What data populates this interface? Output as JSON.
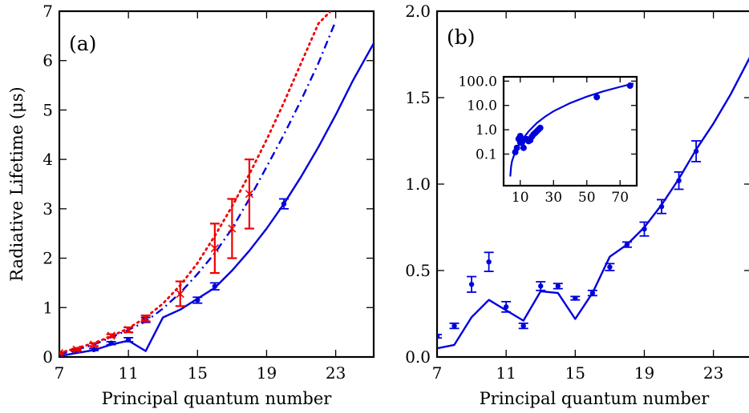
{
  "colors": {
    "blue": "#0000dd",
    "red": "#ee0000"
  },
  "chart_data": [
    {
      "type": "line",
      "panel_label": "(a)",
      "xlabel": "Principal quantum number",
      "ylabel": "Radiative Lifetime (μs)",
      "xlim": [
        7,
        25.2
      ],
      "ylim": [
        0,
        7
      ],
      "xticks": [
        7,
        11,
        15,
        19,
        23
      ],
      "yticks": [
        0,
        1,
        2,
        3,
        4,
        5,
        6,
        7
      ],
      "series": [
        {
          "style": "solid",
          "color": "blue",
          "x": [
            7,
            8,
            9,
            10,
            11,
            12,
            13,
            14,
            15,
            16,
            17,
            18,
            19,
            20,
            21,
            22,
            23,
            24,
            25.2
          ],
          "y": [
            0.02,
            0.08,
            0.14,
            0.25,
            0.33,
            0.12,
            0.8,
            0.96,
            1.18,
            1.4,
            1.75,
            2.15,
            2.6,
            3.1,
            3.65,
            4.25,
            4.9,
            5.6,
            6.35
          ]
        },
        {
          "style": "dashdot",
          "color": "blue",
          "x": [
            7,
            9,
            11,
            12,
            13,
            14,
            15,
            16,
            17,
            18,
            19,
            20,
            21,
            22,
            23
          ],
          "y": [
            0.05,
            0.25,
            0.55,
            0.72,
            0.98,
            1.3,
            1.68,
            2.1,
            2.6,
            3.2,
            3.85,
            4.5,
            5.2,
            5.95,
            6.8
          ]
        },
        {
          "style": "dotted",
          "color": "red",
          "x": [
            7,
            8,
            9,
            10,
            11,
            12,
            13,
            14,
            15,
            16,
            17,
            18,
            19,
            20,
            21,
            22,
            22.7
          ],
          "y": [
            0.08,
            0.18,
            0.28,
            0.42,
            0.58,
            0.8,
            1.08,
            1.45,
            1.9,
            2.45,
            3.05,
            3.7,
            4.4,
            5.15,
            5.95,
            6.75,
            7.0
          ]
        },
        {
          "style": "points",
          "color": "blue",
          "marker": "dot",
          "x": [
            8,
            9,
            10,
            11,
            12,
            15,
            16,
            20
          ],
          "y": [
            0.12,
            0.15,
            0.28,
            0.35,
            0.75,
            1.15,
            1.43,
            3.1
          ],
          "err": [
            0.02,
            0.02,
            0.03,
            0.04,
            0.05,
            0.06,
            0.07,
            0.1
          ]
        },
        {
          "style": "points",
          "color": "red",
          "marker": "x",
          "x": [
            7,
            8,
            9,
            10,
            11,
            12,
            14,
            16,
            17,
            18
          ],
          "y": [
            0.08,
            0.15,
            0.25,
            0.43,
            0.55,
            0.78,
            1.28,
            2.2,
            2.6,
            3.3
          ],
          "err": [
            0.02,
            0.02,
            0.03,
            0.03,
            0.05,
            0.06,
            0.25,
            0.5,
            0.6,
            0.7
          ]
        }
      ]
    },
    {
      "type": "line",
      "panel_label": "(b)",
      "xlabel": "Principal quantum number",
      "ylabel": "",
      "xlim": [
        7,
        25.2
      ],
      "ylim": [
        0,
        2.0
      ],
      "xticks": [
        7,
        11,
        15,
        19,
        23
      ],
      "yticks": [
        "0.0",
        "0.5",
        "1.0",
        "1.5",
        "2.0"
      ],
      "series": [
        {
          "style": "solid",
          "color": "blue",
          "x": [
            7,
            8,
            9,
            10,
            11,
            12,
            13,
            14,
            15,
            16,
            17,
            18,
            19,
            20,
            21,
            22,
            23,
            24,
            25.2
          ],
          "y": [
            0.05,
            0.07,
            0.23,
            0.33,
            0.27,
            0.21,
            0.38,
            0.37,
            0.22,
            0.37,
            0.58,
            0.65,
            0.75,
            0.88,
            1.03,
            1.2,
            1.35,
            1.52,
            1.75
          ]
        },
        {
          "style": "points",
          "color": "blue",
          "marker": "dot",
          "x": [
            7,
            8,
            9,
            10,
            11,
            12,
            13,
            14,
            15,
            16,
            17,
            18,
            19,
            20,
            21,
            22
          ],
          "y": [
            0.12,
            0.18,
            0.42,
            0.55,
            0.29,
            0.18,
            0.41,
            0.41,
            0.34,
            0.37,
            0.52,
            0.65,
            0.74,
            0.87,
            1.02,
            1.19
          ],
          "err": [
            0.01,
            0.015,
            0.045,
            0.055,
            0.03,
            0.015,
            0.025,
            0.015,
            0.01,
            0.015,
            0.02,
            0.015,
            0.04,
            0.04,
            0.05,
            0.06
          ]
        }
      ],
      "inset": {
        "type": "scatter",
        "xlim": [
          0,
          80
        ],
        "yscale": "log",
        "ylim": [
          0.005,
          150
        ],
        "xticks": [
          10,
          30,
          50,
          70
        ],
        "yticks": [
          "0.1",
          "1.0",
          "10.0",
          "100.0"
        ],
        "line": {
          "x": [
            4,
            4.5,
            5,
            6,
            7,
            8,
            10,
            12,
            15,
            20,
            25,
            30,
            40,
            50,
            60,
            70,
            78
          ],
          "y": [
            0.012,
            0.03,
            0.05,
            0.08,
            0.12,
            0.17,
            0.3,
            0.46,
            0.85,
            1.9,
            3.5,
            5.8,
            12.5,
            23,
            38,
            58,
            80
          ]
        },
        "points": {
          "x": [
            7,
            8,
            9,
            10,
            10,
            11,
            12,
            13,
            14,
            15,
            16,
            17,
            18,
            19,
            20,
            21,
            22,
            56,
            76
          ],
          "y": [
            0.12,
            0.18,
            0.42,
            0.55,
            0.3,
            0.29,
            0.18,
            0.41,
            0.41,
            0.34,
            0.37,
            0.52,
            0.65,
            0.74,
            0.87,
            1.02,
            1.19,
            22,
            65
          ]
        }
      }
    }
  ]
}
